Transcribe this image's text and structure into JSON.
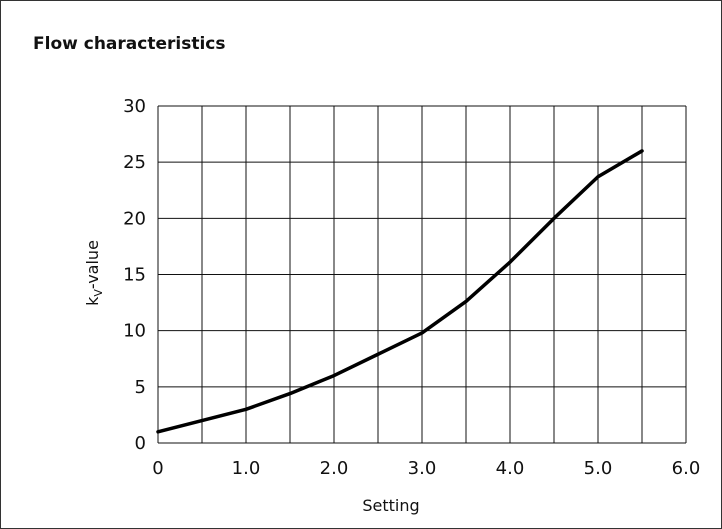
{
  "chart_data": {
    "type": "line",
    "title": "Flow characteristics",
    "xlabel": "Setting",
    "ylabel_main": "k",
    "ylabel_sub": "V",
    "ylabel_rest": "-value",
    "xlim": [
      0,
      6
    ],
    "ylim": [
      0,
      30
    ],
    "xticks": [
      0,
      1,
      2,
      3,
      4,
      5,
      6
    ],
    "xtick_labels": [
      "0",
      "1.0",
      "2.0",
      "3.0",
      "4.0",
      "5.0",
      "6.0"
    ],
    "yticks": [
      0,
      5,
      10,
      15,
      20,
      25,
      30
    ],
    "ytick_labels": [
      "0",
      "5",
      "10",
      "15",
      "20",
      "25",
      "30"
    ],
    "x_gridlines": [
      0,
      0.5,
      1,
      1.5,
      2,
      2.5,
      3,
      3.5,
      4,
      4.5,
      5,
      5.5,
      6
    ],
    "grid": true,
    "line_color": "#000000",
    "grid_color": "#111111",
    "series": [
      {
        "x": [
          0,
          0.5,
          1.0,
          1.5,
          2.0,
          2.5,
          3.0,
          3.5,
          4.0,
          4.5,
          5.0,
          5.5
        ],
        "y": [
          1.0,
          2.0,
          3.0,
          4.4,
          6.0,
          7.9,
          9.8,
          12.6,
          16.1,
          20.0,
          23.7,
          26.0
        ]
      }
    ]
  }
}
